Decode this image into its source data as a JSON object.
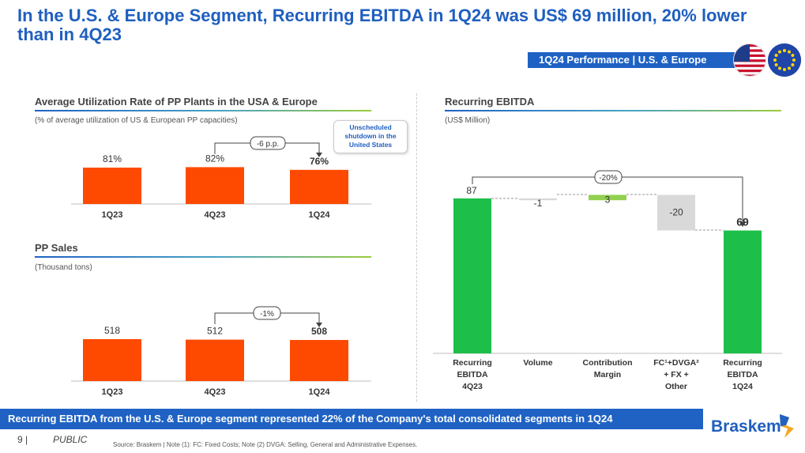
{
  "title": "In the U.S. & Europe Segment, Recurring EBITDA in 1Q24 was US$ 69 million, 20% lower than in 4Q23",
  "performance_banner": "1Q24 Performance | U.S. & Europe",
  "colors": {
    "bar_orange": "#fe4a00",
    "bar_green": "#1dbf4a",
    "bar_gray": "#d9d9d9",
    "positive_green": "#92d050",
    "brand_blue": "#1f62c4"
  },
  "utilization": {
    "title": "Average Utilization Rate of PP Plants in the USA & Europe",
    "subtitle": "(% of average utilization of US & European PP capacities)",
    "note": "Unscheduled shutdown in the United States",
    "change_label": "-6 p.p."
  },
  "pp_sales": {
    "title": "PP Sales",
    "subtitle": "(Thousand tons)",
    "change_label": "-1%"
  },
  "ebitda": {
    "title": "Recurring EBITDA",
    "subtitle": "(US$ Million)",
    "change_label": "-20%"
  },
  "chart_data": [
    {
      "type": "bar",
      "title": "Average Utilization Rate of PP Plants in the USA & Europe",
      "categories": [
        "1Q23",
        "4Q23",
        "1Q24"
      ],
      "values": [
        81,
        82,
        76
      ],
      "value_labels": [
        "81%",
        "82%",
        "76%"
      ],
      "ylabel": "% of average utilization",
      "ylim": [
        0,
        100
      ]
    },
    {
      "type": "bar",
      "title": "PP Sales",
      "categories": [
        "1Q23",
        "4Q23",
        "1Q24"
      ],
      "values": [
        518,
        512,
        508
      ],
      "value_labels": [
        "518",
        "512",
        "508"
      ],
      "ylabel": "Thousand tons",
      "ylim": [
        0,
        600
      ]
    },
    {
      "type": "bar",
      "subtype": "waterfall",
      "title": "Recurring EBITDA",
      "ylabel": "US$ Million",
      "categories": [
        "Recurring EBITDA 4Q23",
        "Volume",
        "Contribution Margin",
        "FC¹+DVGA² + FX + Other",
        "Recurring EBITDA 1Q24"
      ],
      "category_lines": [
        [
          "Recurring",
          "EBITDA",
          "4Q23"
        ],
        [
          "Volume"
        ],
        [
          "Contribution",
          "Margin"
        ],
        [
          "FC¹+DVGA²",
          "+ FX +",
          "Other"
        ],
        [
          "Recurring",
          "EBITDA",
          "1Q24"
        ]
      ],
      "values": [
        87,
        -1,
        3,
        -20,
        69
      ],
      "value_labels": [
        "87",
        "-1",
        "3",
        "-20",
        "69"
      ],
      "kinds": [
        "total",
        "delta",
        "delta",
        "delta",
        "total"
      ],
      "ylim": [
        0,
        100
      ]
    }
  ],
  "bottom_banner": "Recurring EBITDA from the U.S. & Europe segment represented 22% of the Company's total consolidated segments in 1Q24",
  "footer": {
    "page": "9  |",
    "classification": "PUBLIC",
    "source": "Source: Braskem | Note (1): FC: Fixed Costs; Note (2) DVGA: Selling, General and Administrative Expenses."
  },
  "logo_text": "Braskem"
}
